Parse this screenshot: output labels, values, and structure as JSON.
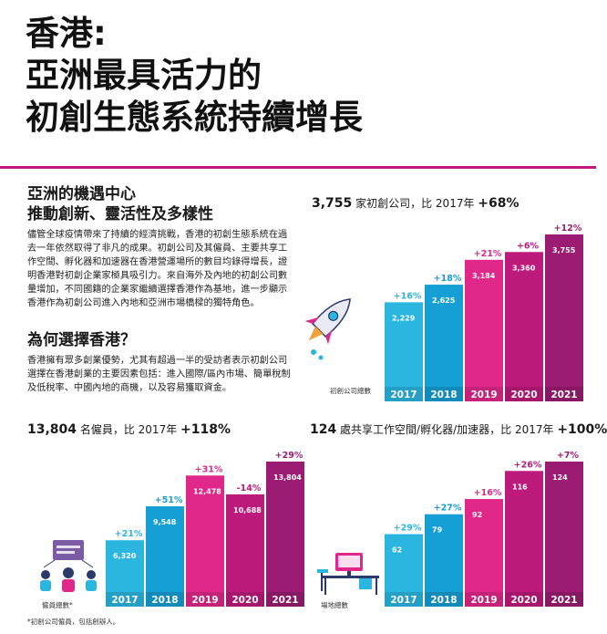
{
  "title_lines": [
    "香港:",
    "亞洲最具活力的",
    "初創生態系統持續增長"
  ],
  "section1": {
    "heading_lines": [
      "亞洲的機遇中心",
      "推動創新、靈活性及多樣性"
    ],
    "paragraph": "儘管全球疫情帶來了持續的經濟挑戰，香港的初創生態系統在過去一年依然取得了非凡的成果。初創公司及其僱員、主要共享工作空間、孵化器和加速器在香港營運場所的數目均錄得增長，證明香港對初創企業家極具吸引力。來自海外及內地的初創公司數量增加，不同國籍的企業家繼續選擇香港作為基地，進一步顯示香港作為初創公司進入內地和亞洲市場橋樑的獨特角色。"
  },
  "section2": {
    "heading": "為何選擇香港？",
    "paragraph": "香港擁有眾多創業優勢，尤其有超過一半的受訪者表示初創公司選擇在香港創業的主要因素包括：進入國際/區內市場、簡單稅制及低稅率、中國內地的商機，以及容易獲取資金。"
  },
  "footnote": "*初創公司僱員，包括創辦人。",
  "colors": {
    "c2017": "#2bb6e0",
    "c2018": "#169fd4",
    "c2019": "#e0288a",
    "c2020": "#bd1b7c",
    "c2021": "#9b1c72",
    "accent": "#c4177f"
  },
  "chart_data": [
    {
      "type": "bar",
      "headline": {
        "number": "3,755",
        "text": " 家初創公司，比 2017年 ",
        "change": "+68%"
      },
      "icon_caption": "初創公司總數",
      "categories": [
        "2017",
        "2018",
        "2019",
        "2020",
        "2021"
      ],
      "values": [
        2229,
        2625,
        3184,
        3360,
        3755
      ],
      "value_labels": [
        "2,229",
        "2,625",
        "3,184",
        "3,360",
        "3,755"
      ],
      "changes": [
        "+16%",
        "+18%",
        "+21%",
        "+6%",
        "+12%"
      ],
      "ylim": [
        0,
        3755
      ]
    },
    {
      "type": "bar",
      "headline": {
        "number": "13,804",
        "text": " 名僱員，比 2017年 ",
        "change": "+118%"
      },
      "icon_caption": "僱員總數*",
      "categories": [
        "2017",
        "2018",
        "2019",
        "2020",
        "2021"
      ],
      "values": [
        6320,
        9548,
        12478,
        10688,
        13804
      ],
      "value_labels": [
        "6,320",
        "9,548",
        "12,478",
        "10,688",
        "13,804"
      ],
      "changes": [
        "+21%",
        "+51%",
        "+31%",
        "-14%",
        "+29%"
      ],
      "ylim": [
        0,
        13804
      ]
    },
    {
      "type": "bar",
      "headline": {
        "number": "124",
        "text": " 處共享工作空間/孵化器/加速器，比 2017年 ",
        "change": "+100%"
      },
      "icon_caption": "場地總數",
      "categories": [
        "2017",
        "2018",
        "2019",
        "2020",
        "2021"
      ],
      "values": [
        62,
        79,
        92,
        116,
        124
      ],
      "value_labels": [
        "62",
        "79",
        "92",
        "116",
        "124"
      ],
      "changes": [
        "+29%",
        "+27%",
        "+16%",
        "+26%",
        "+7%"
      ],
      "ylim": [
        0,
        124
      ]
    }
  ]
}
